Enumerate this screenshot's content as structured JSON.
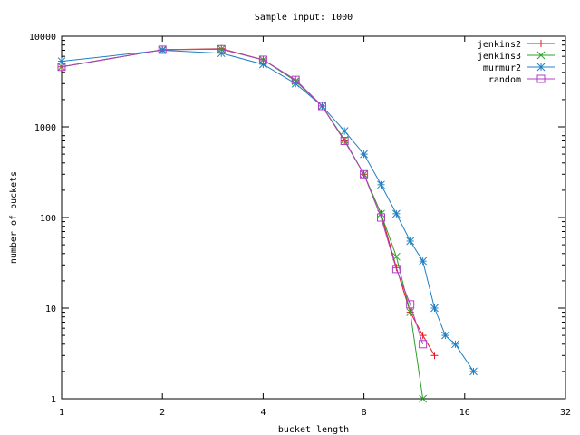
{
  "chart_data": {
    "type": "line",
    "title": "Sample input: 1000",
    "xlabel": "bucket length",
    "ylabel": "number of buckets",
    "x_scale": "log2",
    "y_scale": "log10",
    "xlim": [
      1,
      32
    ],
    "ylim": [
      1,
      10000
    ],
    "x_ticks": [
      {
        "value": 1,
        "label": "1"
      },
      {
        "value": 2,
        "label": "2"
      },
      {
        "value": 4,
        "label": "4"
      },
      {
        "value": 8,
        "label": "8"
      },
      {
        "value": 16,
        "label": "16"
      },
      {
        "value": 32,
        "label": "32"
      }
    ],
    "y_ticks": [
      {
        "value": 1,
        "label": "1"
      },
      {
        "value": 10,
        "label": "10"
      },
      {
        "value": 100,
        "label": "100"
      },
      {
        "value": 1000,
        "label": "1000"
      },
      {
        "value": 10000,
        "label": "10000"
      }
    ],
    "legend_position": "top-right",
    "grid": false,
    "series": [
      {
        "name": "jenkins2",
        "color": "#e41a1c",
        "marker": "plus",
        "points": [
          [
            1,
            4600
          ],
          [
            2,
            7100
          ],
          [
            3,
            7300
          ],
          [
            4,
            5500
          ],
          [
            5,
            3300
          ],
          [
            6,
            1700
          ],
          [
            7,
            700
          ],
          [
            8,
            300
          ],
          [
            9,
            110
          ],
          [
            10,
            28
          ],
          [
            11,
            9
          ],
          [
            12,
            5
          ],
          [
            13,
            3
          ]
        ]
      },
      {
        "name": "jenkins3",
        "color": "#2ca02c",
        "marker": "cross",
        "points": [
          [
            1,
            4600
          ],
          [
            2,
            7100
          ],
          [
            3,
            7200
          ],
          [
            4,
            5500
          ],
          [
            5,
            3200
          ],
          [
            6,
            1700
          ],
          [
            7,
            720
          ],
          [
            8,
            300
          ],
          [
            9,
            110
          ],
          [
            10,
            37
          ],
          [
            11,
            9
          ],
          [
            12,
            1
          ]
        ]
      },
      {
        "name": "murmur2",
        "color": "#1f7fc4",
        "marker": "star",
        "points": [
          [
            1,
            5300
          ],
          [
            2,
            7000
          ],
          [
            3,
            6500
          ],
          [
            4,
            4900
          ],
          [
            5,
            3000
          ],
          [
            6,
            1700
          ],
          [
            7,
            900
          ],
          [
            8,
            500
          ],
          [
            9,
            230
          ],
          [
            10,
            110
          ],
          [
            11,
            55
          ],
          [
            12,
            33
          ],
          [
            13,
            10
          ],
          [
            14,
            5
          ],
          [
            15,
            4
          ],
          [
            17,
            2
          ]
        ]
      },
      {
        "name": "random",
        "color": "#b03fc4",
        "marker": "box",
        "points": [
          [
            1,
            4600
          ],
          [
            2,
            7100
          ],
          [
            3,
            7200
          ],
          [
            4,
            5500
          ],
          [
            5,
            3300
          ],
          [
            6,
            1700
          ],
          [
            7,
            700
          ],
          [
            8,
            300
          ],
          [
            9,
            100
          ],
          [
            10,
            27
          ],
          [
            11,
            11
          ],
          [
            12,
            4
          ]
        ]
      }
    ]
  }
}
